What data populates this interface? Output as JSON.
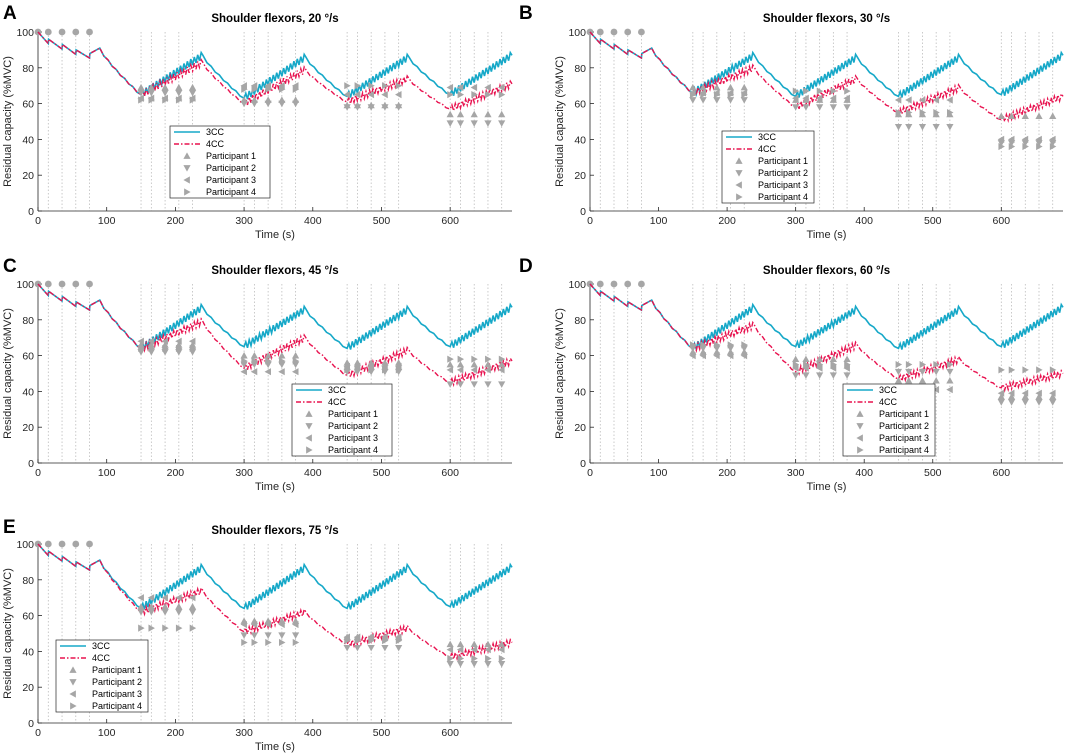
{
  "figure": {
    "description_title": "Residual capacity of shoulder flexors under 3CC and 4CC models",
    "colors": {
      "cc3": "#16a8c8",
      "cc4": "#e8124f",
      "participant": "#a6a6a6",
      "vline": "#bdbdbd"
    }
  },
  "chart_data": [
    {
      "panel": "A",
      "type": "line",
      "title": "Shoulder flexors, 20 °/s",
      "xlabel": "Time (s)",
      "ylabel": "Residual capacity (%MVC)",
      "xlim": [
        0,
        690
      ],
      "ylim": [
        0,
        100
      ],
      "xticks": [
        0,
        100,
        200,
        300,
        400,
        500,
        600
      ],
      "yticks": [
        0,
        20,
        40,
        60,
        80,
        100
      ],
      "legend": {
        "location": "center-left",
        "entries": [
          "3CC",
          "4CC",
          "Participant 1",
          "Participant 2",
          "Participant 3",
          "Participant 4"
        ]
      },
      "cycle_minima_3CC": [
        65,
        63,
        64,
        65
      ],
      "cycle_peaks_3CC": [
        87,
        86,
        86,
        87
      ],
      "cycle_minima_4CC": [
        65,
        60,
        61,
        57
      ],
      "cycle_peaks_4CC": [
        83,
        79,
        74,
        71
      ],
      "participants": [
        [
          69,
          62,
          59,
          54
        ],
        [
          66,
          60,
          58,
          49
        ],
        [
          63,
          70,
          65,
          69
        ],
        [
          62,
          68,
          70,
          65
        ]
      ]
    },
    {
      "panel": "B",
      "type": "line",
      "title": "Shoulder flexors, 30 °/s",
      "xlabel": "Time (s)",
      "ylabel": "Residual capacity (%MVC)",
      "xlim": [
        0,
        690
      ],
      "ylim": [
        0,
        100
      ],
      "xticks": [
        0,
        100,
        200,
        300,
        400,
        500,
        600
      ],
      "yticks": [
        0,
        20,
        40,
        60,
        80,
        100
      ],
      "legend": {
        "location": "center-left",
        "entries": [
          "3CC",
          "4CC",
          "Participant 1",
          "Participant 2",
          "Participant 3",
          "Participant 4"
        ]
      },
      "cycle_minima_3CC": [
        66,
        64,
        64,
        65
      ],
      "cycle_peaks_3CC": [
        87,
        86,
        86,
        87
      ],
      "cycle_minima_4CC": [
        66,
        58,
        55,
        51
      ],
      "cycle_peaks_4CC": [
        80,
        74,
        69,
        64
      ],
      "participants": [
        [
          69,
          62,
          54,
          53
        ],
        [
          62,
          58,
          47,
          38
        ],
        [
          66,
          63,
          62,
          40
        ],
        [
          65,
          67,
          55,
          36
        ]
      ]
    },
    {
      "panel": "C",
      "type": "line",
      "title": "Shoulder flexors, 45 °/s",
      "xlabel": "Time (s)",
      "ylabel": "Residual capacity (%MVC)",
      "xlim": [
        0,
        690
      ],
      "ylim": [
        0,
        100
      ],
      "xticks": [
        0,
        100,
        200,
        300,
        400,
        500,
        600
      ],
      "yticks": [
        0,
        20,
        40,
        60,
        80,
        100
      ],
      "legend": {
        "location": "center",
        "entries": [
          "3CC",
          "4CC",
          "Participant 1",
          "Participant 2",
          "Participant 3",
          "Participant 4"
        ]
      },
      "cycle_minima_3CC": [
        64,
        65,
        64,
        65
      ],
      "cycle_peaks_3CC": [
        87,
        86,
        86,
        87
      ],
      "cycle_minima_4CC": [
        64,
        53,
        49,
        45
      ],
      "cycle_peaks_4CC": [
        79,
        70,
        63,
        57
      ],
      "participants": [
        [
          66,
          60,
          56,
          55
        ],
        [
          62,
          55,
          51,
          44
        ],
        [
          68,
          51,
          54,
          52
        ],
        [
          64,
          57,
          52,
          58
        ]
      ]
    },
    {
      "panel": "D",
      "type": "line",
      "title": "Shoulder flexors, 60 °/s",
      "xlabel": "Time (s)",
      "ylabel": "Residual capacity (%MVC)",
      "xlim": [
        0,
        690
      ],
      "ylim": [
        0,
        100
      ],
      "xticks": [
        0,
        100,
        200,
        300,
        400,
        500,
        600
      ],
      "yticks": [
        0,
        20,
        40,
        60,
        80,
        100
      ],
      "legend": {
        "location": "center",
        "entries": [
          "3CC",
          "4CC",
          "Participant 1",
          "Participant 2",
          "Participant 3",
          "Participant 4"
        ]
      },
      "cycle_minima_3CC": [
        64,
        65,
        64,
        65
      ],
      "cycle_peaks_3CC": [
        87,
        86,
        86,
        87
      ],
      "cycle_minima_4CC": [
        64,
        51,
        47,
        42
      ],
      "cycle_peaks_4CC": [
        77,
        66,
        58,
        50
      ],
      "participants": [
        [
          62,
          58,
          46,
          37
        ],
        [
          64,
          49,
          51,
          34
        ],
        [
          60,
          53,
          41,
          39
        ],
        [
          66,
          55,
          55,
          52
        ]
      ]
    },
    {
      "panel": "E",
      "type": "line",
      "title": "Shoulder flexors, 75 °/s",
      "xlabel": "Time (s)",
      "ylabel": "Residual capacity (%MVC)",
      "xlim": [
        0,
        690
      ],
      "ylim": [
        0,
        100
      ],
      "xticks": [
        0,
        100,
        200,
        300,
        400,
        500,
        600
      ],
      "yticks": [
        0,
        20,
        40,
        60,
        80,
        100
      ],
      "legend": {
        "location": "bottom-left",
        "entries": [
          "3CC",
          "4CC",
          "Participant 1",
          "Participant 2",
          "Participant 3",
          "Participant 4"
        ]
      },
      "cycle_minima_3CC": [
        64,
        64,
        64,
        65
      ],
      "cycle_peaks_3CC": [
        87,
        87,
        87,
        87
      ],
      "cycle_minima_4CC": [
        62,
        51,
        44,
        37
      ],
      "cycle_peaks_4CC": [
        74,
        62,
        53,
        45
      ],
      "participants": [
        [
          65,
          57,
          48,
          44
        ],
        [
          62,
          49,
          42,
          33
        ],
        [
          70,
          55,
          48,
          41
        ],
        [
          53,
          45,
          46,
          36
        ]
      ]
    }
  ]
}
